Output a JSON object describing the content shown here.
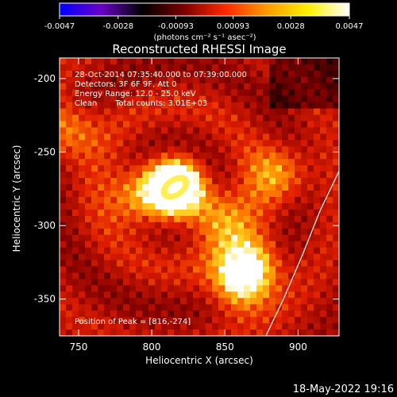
{
  "colorbar": {
    "ticks": [
      "-0.0047",
      "-0.0028",
      "-0.00093",
      "0.00093",
      "0.0028",
      "0.0047"
    ],
    "values": [
      -0.0047,
      -0.0028,
      -0.00093,
      0.00093,
      0.0028,
      0.0047
    ],
    "range": [
      -0.0047,
      0.0047
    ],
    "unit_label": "(photons cm⁻² s⁻¹ asec⁻²)",
    "colors": [
      "#0000ff",
      "#6a00c8",
      "#000000",
      "#7a0000",
      "#ff2800",
      "#ff9a00",
      "#fff000",
      "#ffffff"
    ]
  },
  "chart_data": {
    "type": "heatmap",
    "title": "Reconstructed RHESSI Image",
    "xlabel": "Heliocentric X (arcsec)",
    "ylabel": "Heliocentric Y (arcsec)",
    "xlim": [
      737,
      928
    ],
    "ylim": [
      -375,
      -186
    ],
    "xticks": [
      750,
      800,
      850,
      900
    ],
    "yticks": [
      -200,
      -250,
      -300,
      -350
    ],
    "peak": {
      "x": 816,
      "y": -274
    },
    "sources": [
      {
        "x": 816,
        "y": -274,
        "intensity": 1.0
      },
      {
        "x": 868,
        "y": -328,
        "intensity": 0.55
      },
      {
        "x": 845,
        "y": -295,
        "intensity": 0.45
      },
      {
        "x": 860,
        "y": -340,
        "intensity": 0.5
      },
      {
        "x": 887,
        "y": -265,
        "intensity": 0.4
      },
      {
        "x": 742,
        "y": -235,
        "intensity": 0.4
      },
      {
        "x": 790,
        "y": -280,
        "intensity": 0.45
      }
    ],
    "limb_points": [
      [
        928,
        -263
      ],
      [
        915,
        -290
      ],
      [
        903,
        -320
      ],
      [
        890,
        -350
      ],
      [
        878,
        -375
      ]
    ]
  },
  "annotations": {
    "time_range": "28-Oct-2014 07:35:40.000 to 07:39:00.000",
    "detectors": "Detectors: 3F 6F 9F, Att 0",
    "energy": "Energy Range: 12.0 - 25.0 keV",
    "method": "Clean",
    "counts": "Total counts: 3.01E+03",
    "peak_label": "Position of Peak = [816,-274]"
  },
  "footer": {
    "date": "18-May-2022 19:16"
  }
}
